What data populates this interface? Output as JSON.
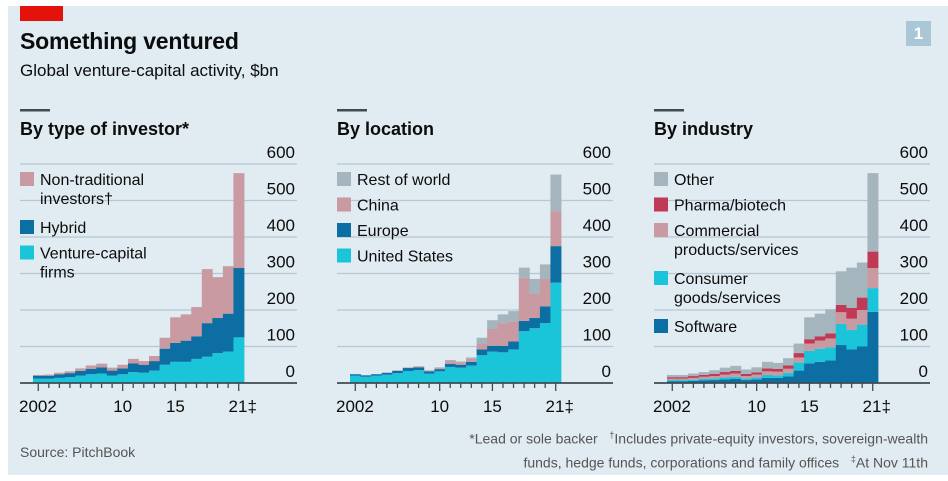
{
  "header": {
    "title": "Something ventured",
    "subtitle": "Global venture-capital activity, $bn",
    "badge": "1"
  },
  "footer": {
    "source": "Source: PitchBook",
    "note1": "*Lead or sole backer",
    "note2_mark": "†",
    "note2": "Includes private-equity investors, sovereign-wealth",
    "note3": "funds, hedge funds, corporations and family offices",
    "note4_mark": "‡",
    "note4": "At Nov 11th"
  },
  "colors": {
    "red_accent": "#e3120b",
    "background": "#e0ebf2",
    "grid": "#b7c6cf",
    "axis": "#3f4b52",
    "cyan": "#1bc5d9",
    "dark_blue": "#0c6ea3",
    "pink": "#c99aa2",
    "grey": "#a5b5bd",
    "crimson": "#c13a55"
  },
  "chart_data": [
    {
      "type": "bar",
      "stacked": true,
      "title": "By type of investor*",
      "categories": [
        "2002",
        "2003",
        "2004",
        "2005",
        "2006",
        "2007",
        "2008",
        "2009",
        "2010",
        "2011",
        "2012",
        "2013",
        "2014",
        "2015",
        "2016",
        "2017",
        "2018",
        "2019",
        "2020",
        "2021"
      ],
      "tick_labels": [
        "2002",
        "10",
        "15",
        "21‡"
      ],
      "ylabel": "$bn",
      "ylim": [
        0,
        600
      ],
      "yticks": [
        0,
        100,
        200,
        300,
        400,
        500,
        600
      ],
      "grid": true,
      "legend_position": "top-left",
      "series": [
        {
          "name": "Venture-capital firms",
          "color": "#1bc5d9",
          "values": [
            12,
            12,
            14,
            16,
            20,
            24,
            26,
            20,
            24,
            30,
            28,
            34,
            50,
            58,
            58,
            66,
            72,
            82,
            86,
            125
          ]
        },
        {
          "name": "Hybrid",
          "color": "#0c6ea3",
          "values": [
            8,
            8,
            10,
            11,
            13,
            15,
            17,
            14,
            16,
            24,
            22,
            26,
            44,
            52,
            58,
            62,
            92,
            96,
            104,
            190
          ]
        },
        {
          "name": "Non-traditional investors†",
          "color": "#c99aa2",
          "values": [
            2,
            3,
            4,
            5,
            7,
            9,
            10,
            8,
            10,
            12,
            10,
            14,
            30,
            70,
            72,
            80,
            148,
            112,
            130,
            260
          ]
        }
      ]
    },
    {
      "type": "bar",
      "stacked": true,
      "title": "By location",
      "categories": [
        "2002",
        "2003",
        "2004",
        "2005",
        "2006",
        "2007",
        "2008",
        "2009",
        "2010",
        "2011",
        "2012",
        "2013",
        "2014",
        "2015",
        "2016",
        "2017",
        "2018",
        "2019",
        "2020",
        "2021"
      ],
      "tick_labels": [
        "2002",
        "10",
        "15",
        "21‡"
      ],
      "ylabel": "$bn",
      "ylim": [
        0,
        600
      ],
      "yticks": [
        0,
        100,
        200,
        300,
        400,
        500,
        600
      ],
      "grid": true,
      "legend_position": "top-left",
      "series": [
        {
          "name": "United States",
          "color": "#1bc5d9",
          "values": [
            20,
            17,
            20,
            23,
            27,
            33,
            35,
            26,
            32,
            44,
            42,
            48,
            76,
            86,
            84,
            92,
            142,
            150,
            164,
            275
          ]
        },
        {
          "name": "Europe",
          "color": "#0c6ea3",
          "values": [
            4,
            4,
            4,
            5,
            6,
            8,
            8,
            6,
            6,
            8,
            8,
            10,
            16,
            16,
            18,
            22,
            28,
            28,
            46,
            100
          ]
        },
        {
          "name": "China",
          "color": "#c99aa2",
          "values": [
            0,
            0,
            0,
            0,
            1,
            1,
            2,
            2,
            3,
            8,
            6,
            8,
            16,
            46,
            62,
            55,
            118,
            67,
            75,
            96
          ]
        },
        {
          "name": "Rest of world",
          "color": "#a5b5bd",
          "values": [
            0,
            0,
            0,
            1,
            1,
            1,
            1,
            1,
            2,
            3,
            3,
            4,
            16,
            24,
            24,
            28,
            28,
            40,
            40,
            100
          ]
        }
      ]
    },
    {
      "type": "bar",
      "stacked": true,
      "title": "By industry",
      "categories": [
        "2002",
        "2003",
        "2004",
        "2005",
        "2006",
        "2007",
        "2008",
        "2009",
        "2010",
        "2011",
        "2012",
        "2013",
        "2014",
        "2015",
        "2016",
        "2017",
        "2018",
        "2019",
        "2020",
        "2021"
      ],
      "tick_labels": [
        "2002",
        "10",
        "15",
        "21‡"
      ],
      "ylabel": "$bn",
      "ylim": [
        0,
        600
      ],
      "yticks": [
        0,
        100,
        200,
        300,
        400,
        500,
        600
      ],
      "grid": true,
      "legend_position": "top-left",
      "series": [
        {
          "name": "Software",
          "color": "#0c6ea3",
          "values": [
            5,
            5,
            6,
            7,
            8,
            10,
            11,
            8,
            10,
            14,
            14,
            18,
            34,
            54,
            58,
            62,
            104,
            92,
            100,
            195
          ]
        },
        {
          "name": "Consumer goods/services",
          "color": "#1bc5d9",
          "values": [
            3,
            3,
            3,
            4,
            4,
            5,
            6,
            4,
            5,
            8,
            7,
            10,
            22,
            34,
            36,
            36,
            58,
            54,
            60,
            65
          ]
        },
        {
          "name": "Commercial products/services",
          "color": "#c99aa2",
          "values": [
            4,
            4,
            5,
            6,
            7,
            8,
            9,
            7,
            8,
            10,
            10,
            11,
            14,
            20,
            22,
            24,
            32,
            30,
            40,
            55
          ]
        },
        {
          "name": "Pharma/biotech",
          "color": "#c13a55",
          "values": [
            4,
            4,
            5,
            5,
            6,
            7,
            7,
            6,
            6,
            8,
            8,
            9,
            12,
            12,
            12,
            14,
            20,
            30,
            34,
            45
          ]
        },
        {
          "name": "Other",
          "color": "#a5b5bd",
          "values": [
            6,
            6,
            7,
            8,
            10,
            12,
            14,
            12,
            14,
            18,
            16,
            20,
            26,
            60,
            62,
            66,
            92,
            110,
            96,
            215
          ]
        }
      ]
    }
  ]
}
